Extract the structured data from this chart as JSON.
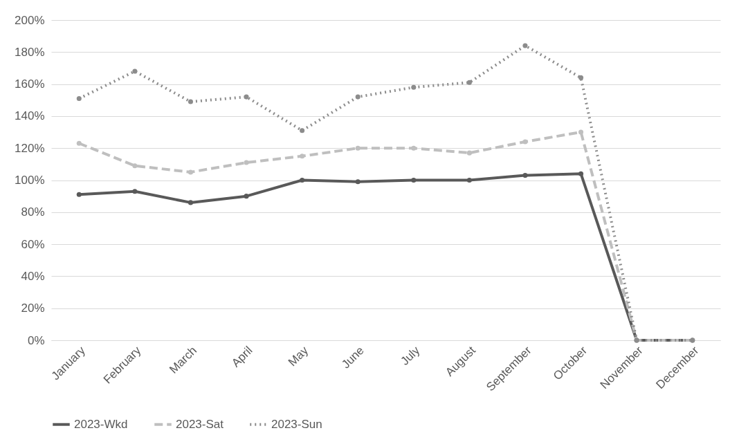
{
  "chart_data": {
    "type": "line",
    "categories": [
      "January",
      "February",
      "March",
      "April",
      "May",
      "June",
      "July",
      "August",
      "September",
      "October",
      "November",
      "December"
    ],
    "series": [
      {
        "name": "2023-Wkd",
        "color": "#595959",
        "line_style": "solid",
        "values": [
          91,
          93,
          86,
          90,
          100,
          99,
          100,
          100,
          103,
          104,
          0,
          0
        ]
      },
      {
        "name": "2023-Sat",
        "color": "#bfbfbf",
        "line_style": "dashed",
        "values": [
          123,
          109,
          105,
          111,
          115,
          120,
          120,
          117,
          124,
          130,
          0,
          0
        ]
      },
      {
        "name": "2023-Sun",
        "color": "#8c8c8c",
        "line_style": "dotted",
        "values": [
          151,
          168,
          149,
          152,
          131,
          152,
          158,
          161,
          184,
          164,
          0,
          0
        ]
      }
    ],
    "ylim": [
      0,
      200
    ],
    "yticks": [
      {
        "value": 0,
        "label": "0%"
      },
      {
        "value": 20,
        "label": "20%"
      },
      {
        "value": 40,
        "label": "40%"
      },
      {
        "value": 60,
        "label": "60%"
      },
      {
        "value": 80,
        "label": "80%"
      },
      {
        "value": 100,
        "label": "100%"
      },
      {
        "value": 120,
        "label": "120%"
      },
      {
        "value": 140,
        "label": "140%"
      },
      {
        "value": 160,
        "label": "160%"
      },
      {
        "value": 180,
        "label": "180%"
      },
      {
        "value": 200,
        "label": "200%"
      }
    ],
    "grid": "y",
    "legend": "bottom",
    "marker": "circle"
  }
}
